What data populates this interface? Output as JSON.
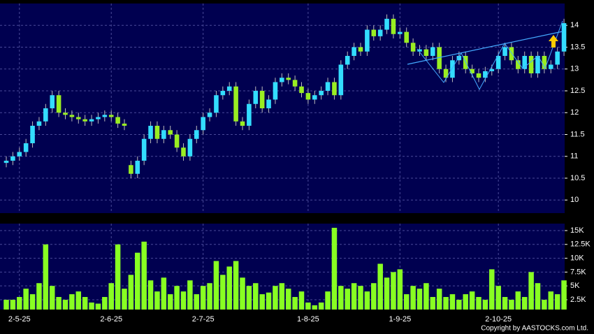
{
  "chart_data": {
    "type": "candlestick",
    "categories": [
      null,
      null,
      "2-5-25",
      null,
      null,
      null,
      null,
      null,
      null,
      null,
      null,
      null,
      null,
      null,
      null,
      null,
      "2-6-25",
      null,
      null,
      null,
      null,
      null,
      null,
      null,
      null,
      null,
      null,
      null,
      null,
      null,
      "2-7-25",
      null,
      null,
      null,
      null,
      null,
      null,
      null,
      null,
      null,
      null,
      null,
      null,
      null,
      null,
      null,
      "1-8-25",
      null,
      null,
      null,
      null,
      null,
      null,
      null,
      null,
      null,
      null,
      null,
      null,
      null,
      "1-9-25",
      null,
      null,
      null,
      null,
      null,
      null,
      null,
      null,
      null,
      null,
      null,
      null,
      null,
      null,
      "2-10-25",
      null,
      null,
      null,
      null,
      null,
      null,
      null,
      null,
      null,
      null
    ],
    "open": [
      10.85,
      10.9,
      11.0,
      11.1,
      11.3,
      11.7,
      11.8,
      12.1,
      12.4,
      12.0,
      11.95,
      11.9,
      11.85,
      11.8,
      11.85,
      11.9,
      11.95,
      11.9,
      11.75,
      10.8,
      10.6,
      10.9,
      11.4,
      11.7,
      11.4,
      11.6,
      11.5,
      11.2,
      11.0,
      11.4,
      11.6,
      11.9,
      12.0,
      12.4,
      12.5,
      12.6,
      11.8,
      11.7,
      12.2,
      12.5,
      12.1,
      12.3,
      12.7,
      12.8,
      12.75,
      12.6,
      12.45,
      12.3,
      12.4,
      12.5,
      12.7,
      12.4,
      13.1,
      13.3,
      13.5,
      13.4,
      13.9,
      13.75,
      13.9,
      14.15,
      13.8,
      13.85,
      13.6,
      13.4,
      13.45,
      13.3,
      13.5,
      13.0,
      12.8,
      13.2,
      13.3,
      13.0,
      12.9,
      12.8,
      12.95,
      13.0,
      13.3,
      13.5,
      13.2,
      13.0,
      13.3,
      12.9,
      13.3,
      13.0,
      13.1,
      13.4
    ],
    "high": [
      11.0,
      11.1,
      11.2,
      11.4,
      11.8,
      11.9,
      12.2,
      12.5,
      12.5,
      12.1,
      12.05,
      12.0,
      11.95,
      11.95,
      12.0,
      12.05,
      12.05,
      12.0,
      11.85,
      10.9,
      11.0,
      11.5,
      11.8,
      11.8,
      11.7,
      11.7,
      11.6,
      11.3,
      11.5,
      11.7,
      12.0,
      12.1,
      12.5,
      12.6,
      12.7,
      12.7,
      11.9,
      12.3,
      12.6,
      12.6,
      12.4,
      12.8,
      12.9,
      12.9,
      12.85,
      12.7,
      12.55,
      12.5,
      12.6,
      12.8,
      12.8,
      13.2,
      13.4,
      13.6,
      13.6,
      14.0,
      14.0,
      14.0,
      14.25,
      14.25,
      13.95,
      13.95,
      13.7,
      13.55,
      13.55,
      13.6,
      13.6,
      13.1,
      13.3,
      13.4,
      13.4,
      13.1,
      13.0,
      13.05,
      13.1,
      13.4,
      13.6,
      13.6,
      13.3,
      13.4,
      13.4,
      13.4,
      13.4,
      13.2,
      13.5,
      14.15
    ],
    "low": [
      10.75,
      10.8,
      10.9,
      11.0,
      11.2,
      11.6,
      11.7,
      12.0,
      11.9,
      11.85,
      11.8,
      11.75,
      11.7,
      11.7,
      11.75,
      11.8,
      11.8,
      11.65,
      11.6,
      10.5,
      10.5,
      10.8,
      11.3,
      11.3,
      11.3,
      11.4,
      11.1,
      10.9,
      10.9,
      11.3,
      11.5,
      11.8,
      11.9,
      12.3,
      12.4,
      11.7,
      11.6,
      11.6,
      12.1,
      12.0,
      12.0,
      12.2,
      12.6,
      12.65,
      12.5,
      12.35,
      12.2,
      12.2,
      12.3,
      12.4,
      12.3,
      12.3,
      13.0,
      13.2,
      13.3,
      13.3,
      13.65,
      13.65,
      13.8,
      13.7,
      13.7,
      13.5,
      13.3,
      13.3,
      13.2,
      13.2,
      12.9,
      12.7,
      12.7,
      13.1,
      12.9,
      12.8,
      12.7,
      12.7,
      12.85,
      12.9,
      13.2,
      13.1,
      12.9,
      12.9,
      12.8,
      12.8,
      12.9,
      12.9,
      13.0,
      13.3
    ],
    "close": [
      10.9,
      11.0,
      11.1,
      11.3,
      11.7,
      11.8,
      12.1,
      12.4,
      12.0,
      11.95,
      11.9,
      11.85,
      11.8,
      11.85,
      11.9,
      11.95,
      11.9,
      11.75,
      11.7,
      10.6,
      10.9,
      11.4,
      11.7,
      11.4,
      11.6,
      11.5,
      11.2,
      11.0,
      11.4,
      11.6,
      11.9,
      12.0,
      12.4,
      12.5,
      12.6,
      11.8,
      11.7,
      12.2,
      12.5,
      12.1,
      12.3,
      12.7,
      12.8,
      12.75,
      12.6,
      12.45,
      12.3,
      12.4,
      12.5,
      12.7,
      12.4,
      13.1,
      13.3,
      13.5,
      13.4,
      13.9,
      13.75,
      13.9,
      14.15,
      13.8,
      13.85,
      13.6,
      13.4,
      13.45,
      13.3,
      13.5,
      13.0,
      12.8,
      13.2,
      13.3,
      13.0,
      12.9,
      12.8,
      12.95,
      13.0,
      13.3,
      13.5,
      13.2,
      13.0,
      13.3,
      12.9,
      13.3,
      13.0,
      13.1,
      13.4,
      14.05
    ],
    "volume": [
      2500,
      2500,
      3000,
      4500,
      3500,
      5500,
      12500,
      5000,
      3000,
      2500,
      3500,
      4000,
      3000,
      2000,
      1800,
      3000,
      5500,
      12500,
      4500,
      7000,
      11000,
      13000,
      6000,
      4000,
      6500,
      3500,
      5000,
      4000,
      6000,
      3500,
      5000,
      5500,
      9500,
      7000,
      8500,
      9500,
      6500,
      5000,
      5500,
      3500,
      3800,
      5000,
      5500,
      4500,
      3000,
      4000,
      2000,
      1500,
      2000,
      4000,
      15500,
      5000,
      4500,
      5500,
      5000,
      4000,
      5500,
      9000,
      6500,
      7500,
      8000,
      3500,
      5000,
      4500,
      5500,
      3000,
      4500,
      3000,
      3500,
      2500,
      3500,
      4000,
      3000,
      2500,
      8000,
      5000,
      3000,
      2500,
      4000,
      3000,
      7500,
      5500,
      2500,
      4000,
      3500,
      6000
    ],
    "up_color": "#33ddff",
    "down_color": "#99ee22",
    "volume_color": "#88ff22",
    "ylim": [
      9.7,
      14.5
    ],
    "yticks": [
      10,
      10.5,
      11,
      11.5,
      12,
      12.5,
      13,
      13.5,
      14
    ],
    "volume_ylim": [
      730,
      16260
    ],
    "volume_yticks": [
      {
        "value": 2500,
        "label": "2.5K"
      },
      {
        "value": 5000,
        "label": "5K"
      },
      {
        "value": 7500,
        "label": "7.5K"
      },
      {
        "value": 10000,
        "label": "10K"
      },
      {
        "value": 12500,
        "label": "12.5K"
      },
      {
        "value": 15000,
        "label": "15K"
      }
    ],
    "grid": true,
    "credit": "Copyright by AASTOCKS.com Ltd."
  }
}
